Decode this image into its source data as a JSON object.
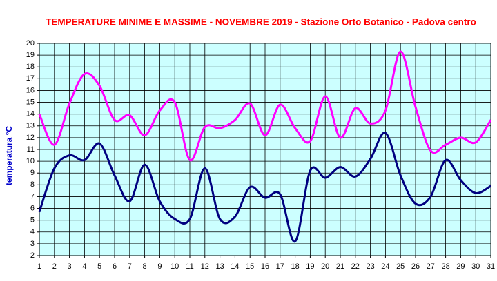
{
  "chart_data": {
    "type": "line",
    "title": "TEMPERATURE MINIME E MASSIME  - NOVEMBRE 2019 - Stazione Orto Botanico - Padova centro",
    "y_label": "temperatura °C",
    "x": [
      1,
      2,
      3,
      4,
      5,
      6,
      7,
      8,
      9,
      10,
      11,
      12,
      13,
      14,
      15,
      16,
      17,
      18,
      19,
      20,
      21,
      22,
      23,
      24,
      25,
      26,
      27,
      28,
      29,
      30,
      31
    ],
    "xlim": [
      1,
      31
    ],
    "xticks": [
      1,
      2,
      3,
      4,
      5,
      6,
      7,
      8,
      9,
      10,
      11,
      12,
      13,
      14,
      15,
      16,
      17,
      18,
      19,
      20,
      21,
      22,
      23,
      24,
      25,
      26,
      27,
      28,
      29,
      30,
      31
    ],
    "ylim": [
      2,
      20
    ],
    "yticks": [
      2,
      3,
      4,
      5,
      6,
      7,
      8,
      9,
      10,
      11,
      12,
      13,
      14,
      15,
      16,
      17,
      18,
      19,
      20
    ],
    "grid": true,
    "series": [
      {
        "color": "#ff00ff",
        "values": [
          14.0,
          11.4,
          14.9,
          17.4,
          16.4,
          13.5,
          13.9,
          12.2,
          14.3,
          15.0,
          10.1,
          12.9,
          12.8,
          13.5,
          14.9,
          12.2,
          14.8,
          12.8,
          11.7,
          15.5,
          12.0,
          14.5,
          13.2,
          14.3,
          19.3,
          14.6,
          10.9,
          11.4,
          12.0,
          11.6,
          13.5
        ]
      },
      {
        "color": "#000080",
        "values": [
          5.7,
          9.4,
          10.5,
          10.1,
          11.5,
          8.8,
          6.6,
          9.7,
          6.6,
          5.1,
          5.1,
          9.4,
          5.1,
          5.3,
          7.8,
          6.9,
          7.2,
          3.2,
          9.2,
          8.6,
          9.5,
          8.7,
          10.2,
          12.4,
          8.8,
          6.4,
          7.0,
          10.1,
          8.4,
          7.3,
          7.9
        ]
      }
    ]
  }
}
